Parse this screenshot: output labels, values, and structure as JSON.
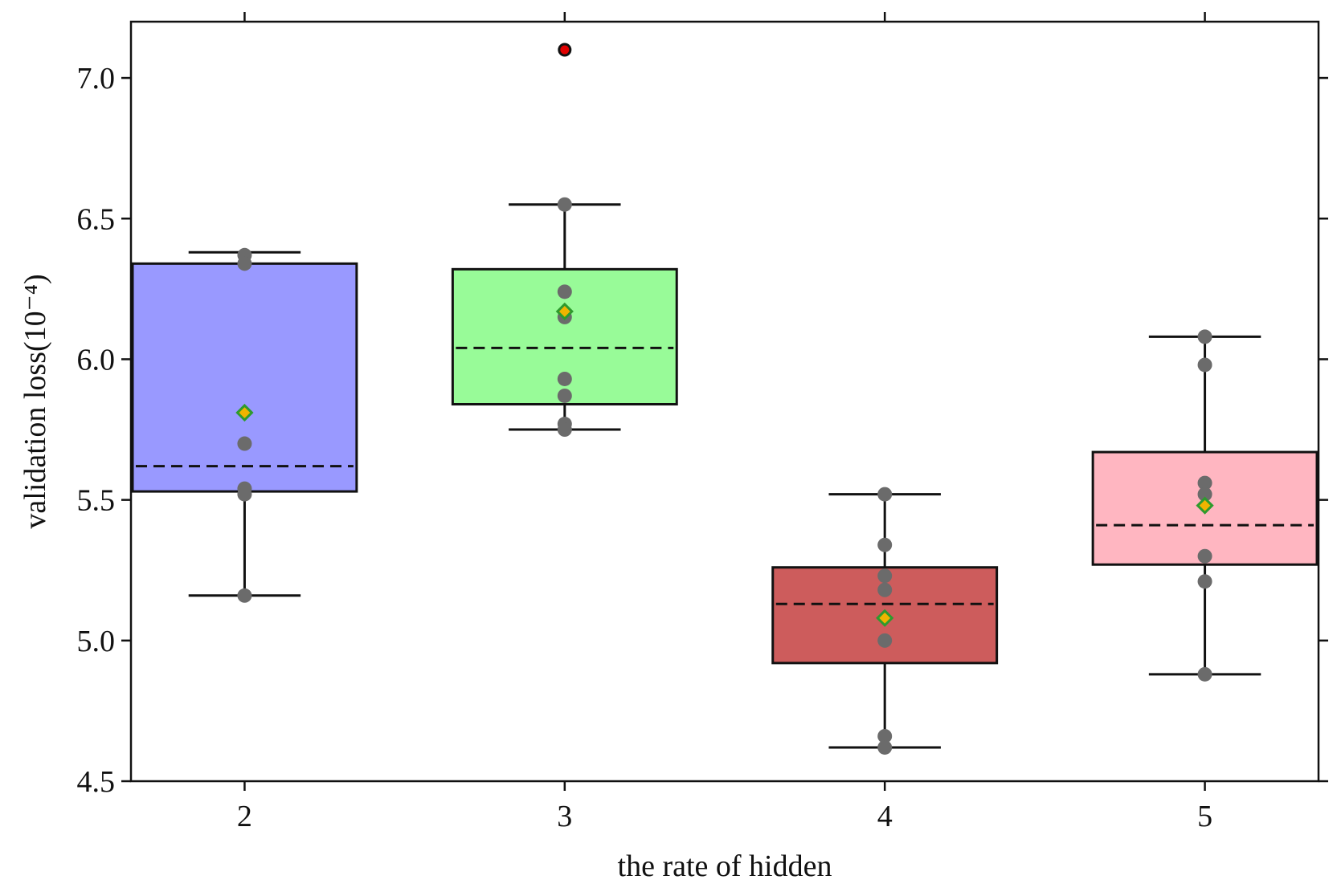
{
  "chart_data": {
    "type": "box",
    "xlabel": "the rate of hidden",
    "ylabel": "validation loss(10⁻⁴)",
    "ylim": [
      4.5,
      7.2
    ],
    "yticks": [
      "4.5",
      "5.0",
      "5.5",
      "6.0",
      "6.5",
      "7.0"
    ],
    "categories": [
      "2",
      "3",
      "4",
      "5"
    ],
    "mirror_ticks": true,
    "median_style": "dashed",
    "mean_marker": "diamond",
    "mean_fill": "#f0b400",
    "mean_edge": "#2e9a2e",
    "point_color": "#6b6b6b",
    "outlier_color": "#e00000",
    "boxes": [
      {
        "category": "2",
        "color": "#9999ff",
        "whisker_low": 5.16,
        "q1": 5.53,
        "median": 5.62,
        "q3": 6.34,
        "whisker_high": 6.38,
        "mean": 5.81,
        "points": [
          6.37,
          6.34,
          5.7,
          5.54,
          5.52,
          5.16
        ],
        "outliers": []
      },
      {
        "category": "3",
        "color": "#98fb98",
        "whisker_low": 5.75,
        "q1": 5.84,
        "median": 6.04,
        "q3": 6.32,
        "whisker_high": 6.55,
        "mean": 6.17,
        "points": [
          6.55,
          6.24,
          6.15,
          5.93,
          5.87,
          5.77,
          5.75
        ],
        "outliers": [
          7.1
        ]
      },
      {
        "category": "4",
        "color": "#cd5c5c",
        "whisker_low": 4.62,
        "q1": 4.92,
        "median": 5.13,
        "q3": 5.26,
        "whisker_high": 5.52,
        "mean": 5.08,
        "points": [
          5.52,
          5.34,
          5.23,
          5.18,
          5.0,
          4.66,
          4.62
        ],
        "outliers": []
      },
      {
        "category": "5",
        "color": "#ffb6c1",
        "whisker_low": 4.88,
        "q1": 5.27,
        "median": 5.41,
        "q3": 5.67,
        "whisker_high": 6.08,
        "mean": 5.48,
        "points": [
          6.08,
          5.98,
          5.56,
          5.52,
          5.3,
          5.21,
          4.88
        ],
        "outliers": []
      }
    ]
  }
}
